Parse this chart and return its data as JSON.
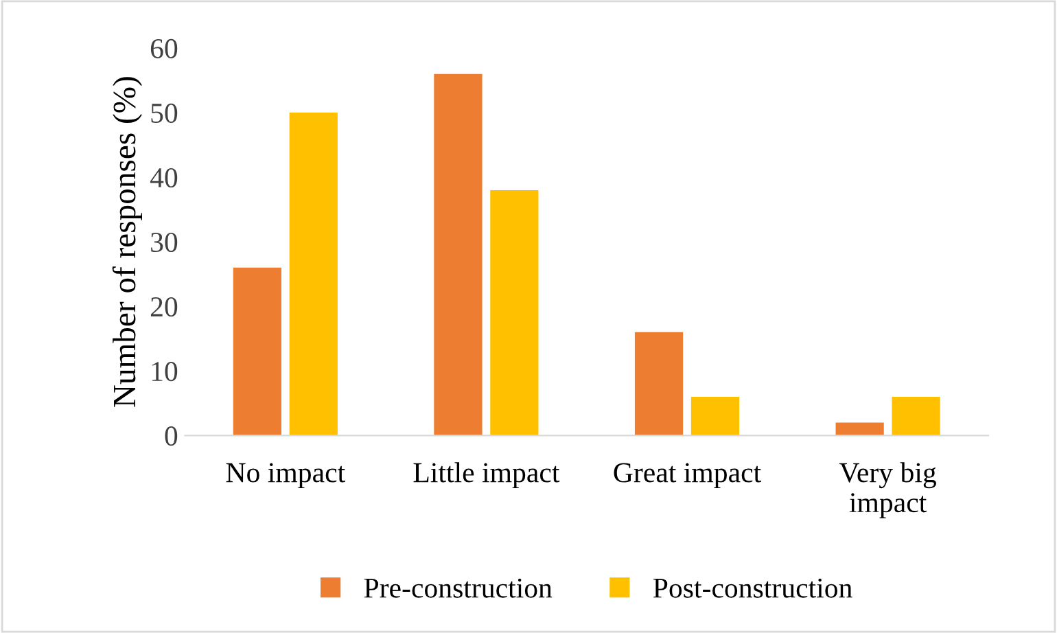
{
  "chart_data": {
    "type": "bar",
    "ylabel": "Number of responses (%)",
    "categories": [
      "No impact",
      "Little impact",
      "Great impact",
      "Very big\nimpact"
    ],
    "series": [
      {
        "name": "Pre-construction",
        "color": "#ed7d31",
        "values": [
          26,
          56,
          16,
          2
        ]
      },
      {
        "name": "Post-construction",
        "color": "#ffc000",
        "values": [
          50,
          38,
          6,
          6
        ]
      }
    ],
    "ylim": [
      0,
      60
    ],
    "yticks": [
      0,
      10,
      20,
      30,
      40,
      50,
      60
    ],
    "grid": false,
    "legend": "bottom"
  }
}
